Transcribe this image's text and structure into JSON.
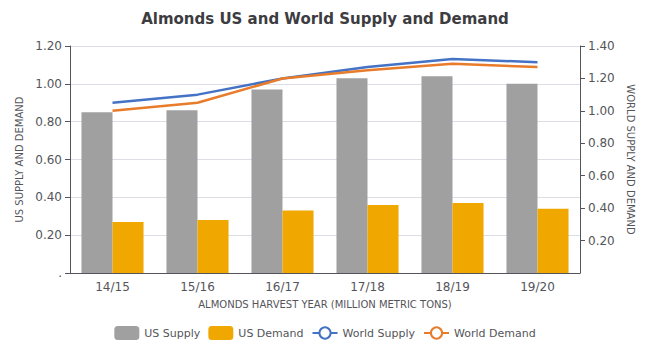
{
  "chart_data": {
    "type": "bar",
    "title": "Almonds US and World Supply and Demand",
    "categories": [
      "14/15",
      "15/16",
      "16/17",
      "17/18",
      "18/19",
      "19/20"
    ],
    "series": [
      {
        "name": "US Supply",
        "type": "bar",
        "color": "#a0a0a0",
        "values": [
          0.85,
          0.86,
          0.97,
          1.03,
          1.04,
          1.0
        ]
      },
      {
        "name": "US Demand",
        "type": "bar",
        "color": "#F0A800",
        "values": [
          0.27,
          0.28,
          0.33,
          0.36,
          0.37,
          0.34
        ]
      },
      {
        "name": "World Supply",
        "type": "line",
        "color": "#4472C4",
        "axis": "y2",
        "values": [
          1.05,
          1.1,
          1.2,
          1.27,
          1.32,
          1.3
        ]
      },
      {
        "name": "World Demand",
        "type": "line",
        "color": "#E87C2B",
        "axis": "y2",
        "values": [
          1.0,
          1.05,
          1.2,
          1.25,
          1.29,
          1.27
        ]
      }
    ],
    "xlabel": "ALMONDS HARVEST YEAR (MILLION METRIC TONS)",
    "ylabel": "US SUPPLY AND DEMAND",
    "y2label": "WORLD SUPPLY AND DEMAND",
    "ylim": [
      0,
      1.2
    ],
    "yticks": [
      {
        "value": 0,
        "label": "."
      },
      {
        "value": 0.2,
        "label": "0.20"
      },
      {
        "value": 0.4,
        "label": "0.40"
      },
      {
        "value": 0.6,
        "label": "0.60"
      },
      {
        "value": 0.8,
        "label": "0.80"
      },
      {
        "value": 1.0,
        "label": "1.00"
      },
      {
        "value": 1.2,
        "label": "1.20"
      }
    ],
    "y2lim": [
      0,
      1.4
    ],
    "y2ticks": [
      {
        "value": 0.2,
        "label": "0.20"
      },
      {
        "value": 0.4,
        "label": "0.40"
      },
      {
        "value": 0.6,
        "label": "0.60"
      },
      {
        "value": 0.8,
        "label": "0.80"
      },
      {
        "value": 1.0,
        "label": "1.00"
      },
      {
        "value": 1.2,
        "label": "1.20"
      },
      {
        "value": 1.4,
        "label": "1.40"
      }
    ],
    "grid": true,
    "legend": "bottom"
  }
}
